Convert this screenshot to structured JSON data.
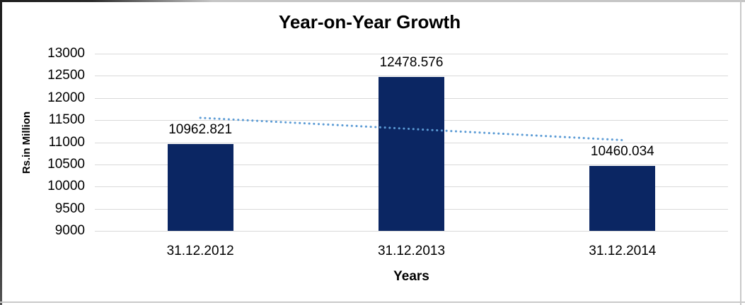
{
  "chart_data": {
    "type": "bar",
    "title": "Year-on-Year Growth",
    "categories": [
      "31.12.2012",
      "31.12.2013",
      "31.12.2014"
    ],
    "values": [
      10962.821,
      12478.576,
      10460.034
    ],
    "value_labels": [
      "10962.821",
      "12478.576",
      "10460.034"
    ],
    "xlabel": "Years",
    "ylabel": "Rs.in Million",
    "ylim": [
      9000,
      13000
    ],
    "y_step": 500,
    "y_ticks": [
      "13000",
      "12500",
      "12000",
      "11500",
      "11000",
      "10500",
      "10000",
      "9500",
      "9000"
    ],
    "grid": true,
    "legend": "none",
    "trendline": {
      "type": "linear",
      "style": "dotted",
      "color": "#5B9BD5"
    },
    "colors": {
      "bar": "#0B2663",
      "gridline": "#D9D9D9",
      "text": "#000000",
      "background": "#FFFFFF",
      "frame_border": "#C9C9C9"
    }
  }
}
